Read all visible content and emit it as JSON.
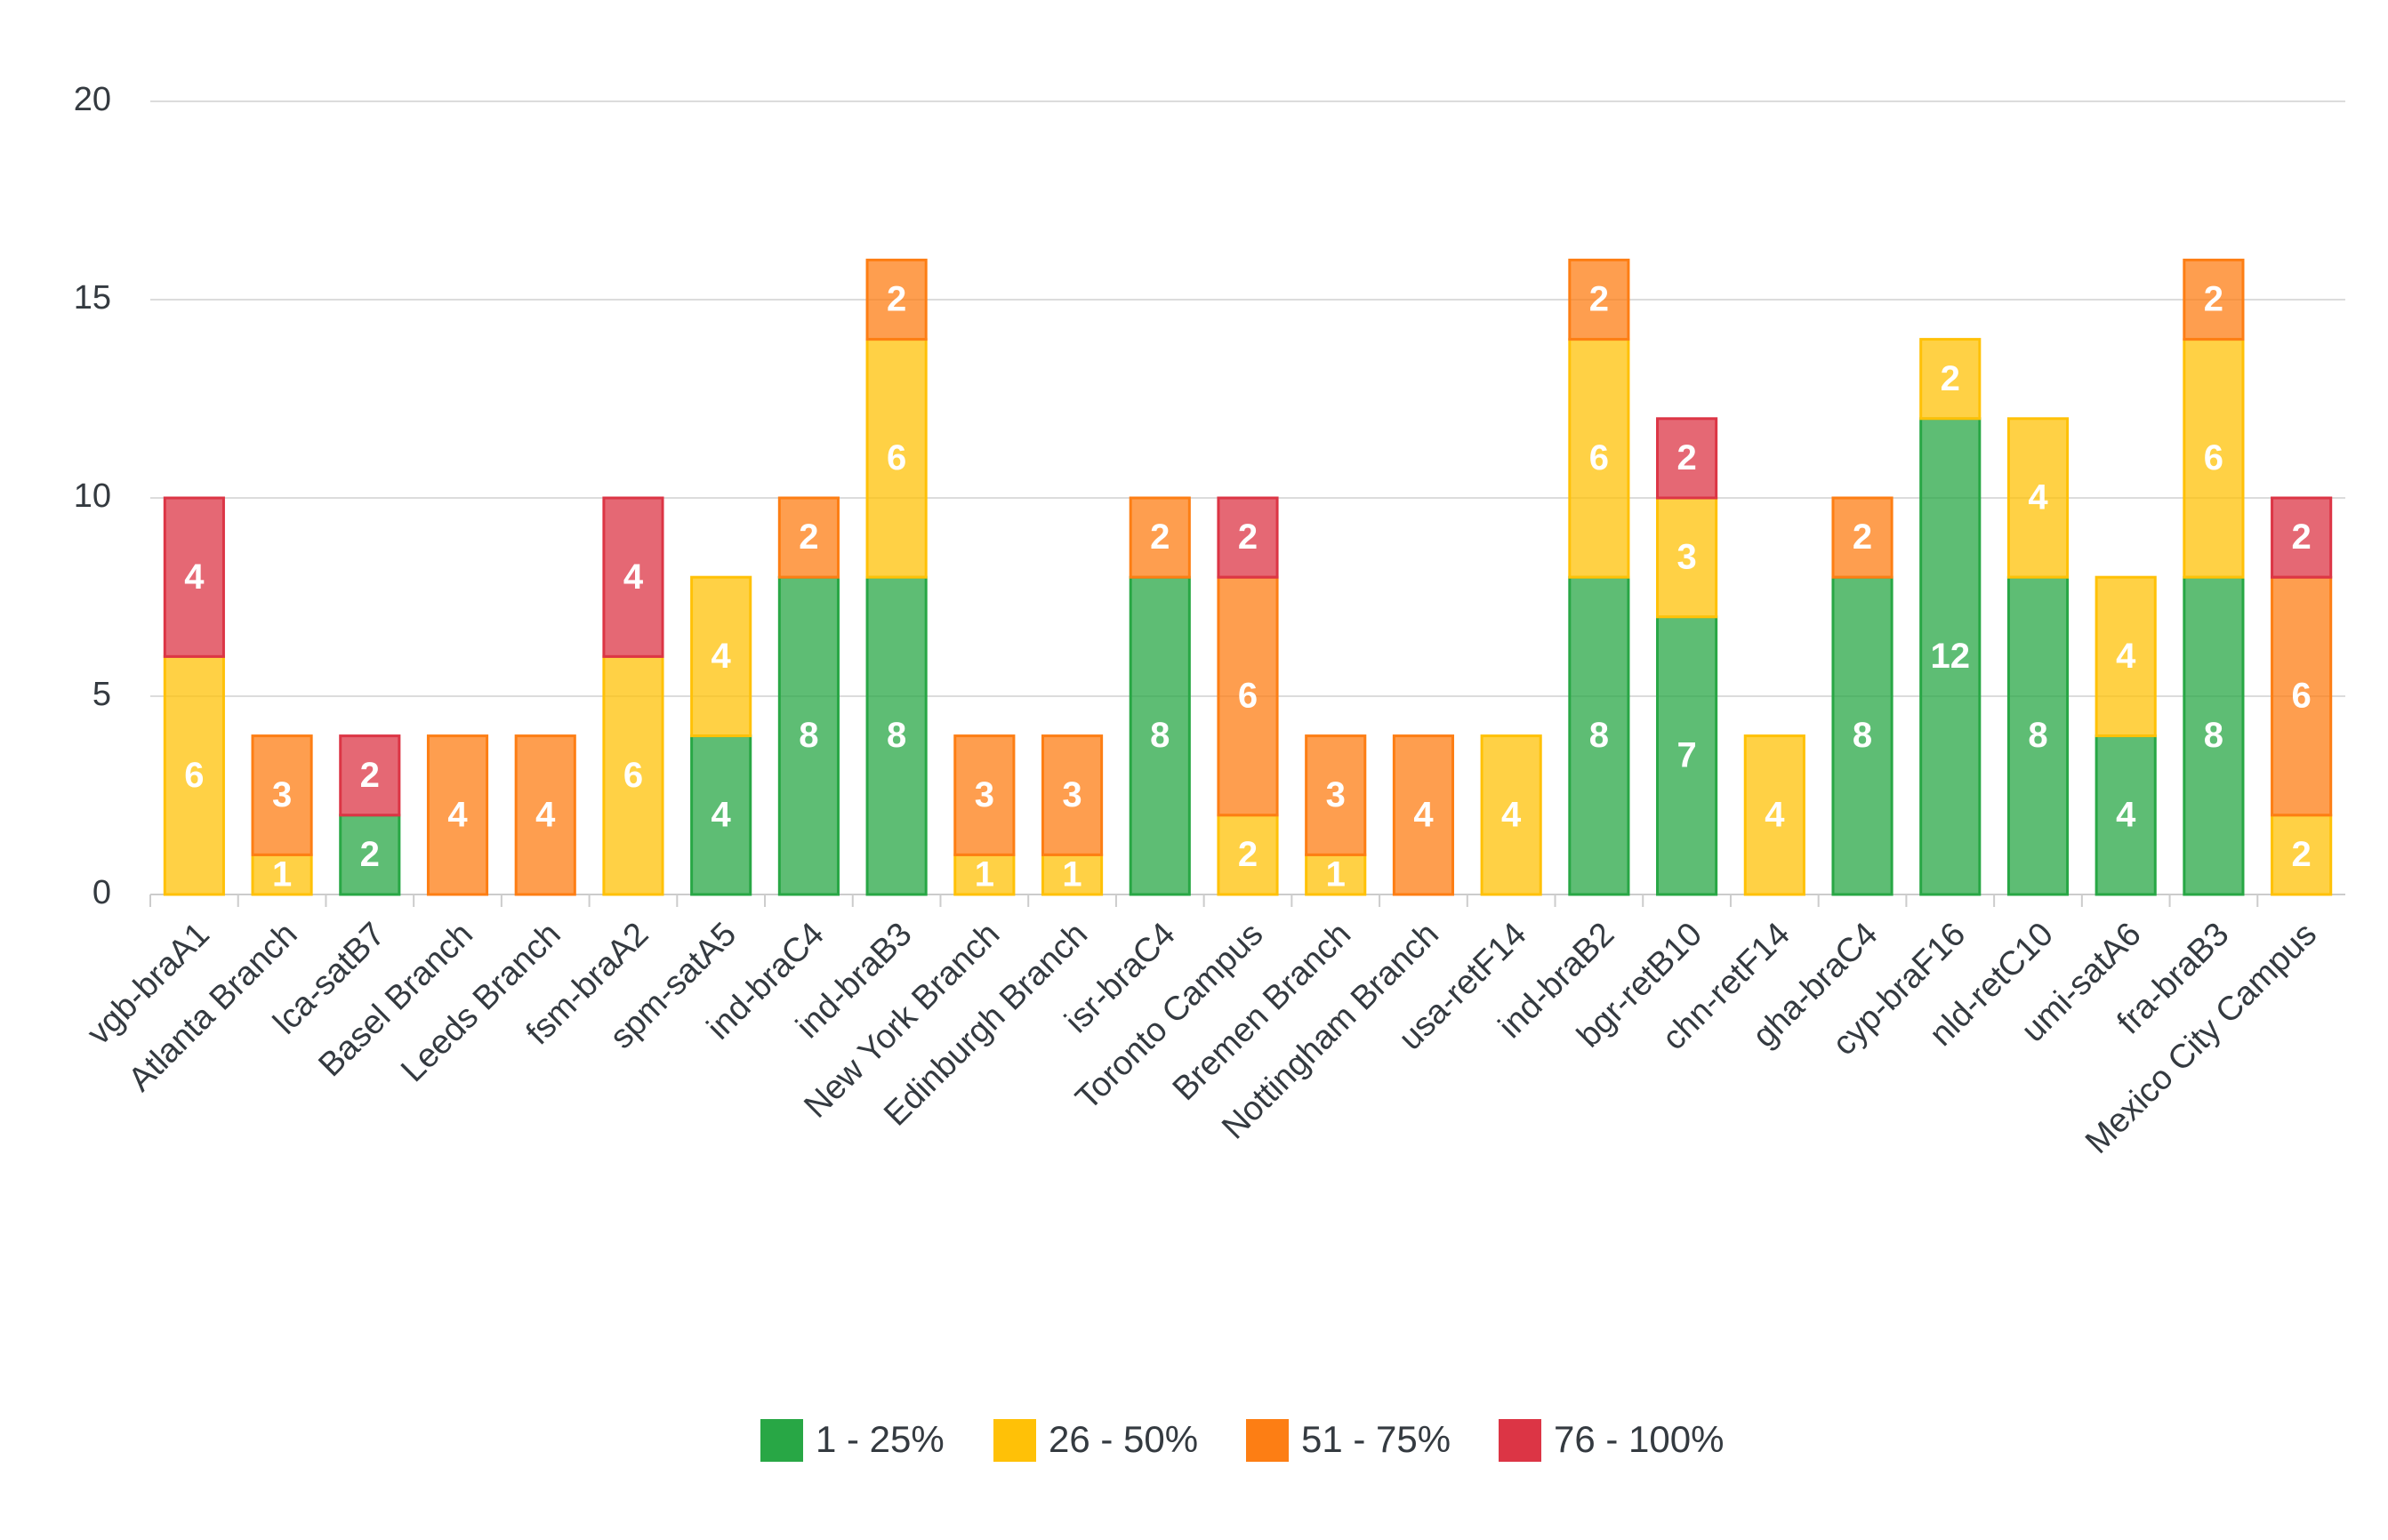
{
  "chart_data": {
    "type": "stacked-bar",
    "categories": [
      "vgb-braA1",
      "Atlanta Branch",
      "lca-satB7",
      "Basel Branch",
      "Leeds Branch",
      "fsm-braA2",
      "spm-satA5",
      "ind-braC4",
      "ind-braB3",
      "New York Branch",
      "Edinburgh Branch",
      "isr-braC4",
      "Toronto Campus",
      "Bremen Branch",
      "Nottingham Branch",
      "usa-retF14",
      "ind-braB2",
      "bgr-retB10",
      "chn-retF14",
      "gha-braC4",
      "cyp-braF16",
      "nld-retC10",
      "umi-satA6",
      "fra-braB3",
      "Mexico City Campus"
    ],
    "series": [
      {
        "name": "1 - 25%",
        "color": "#28a745",
        "values": [
          null,
          null,
          2,
          null,
          null,
          null,
          4,
          8,
          8,
          null,
          null,
          8,
          null,
          null,
          null,
          null,
          8,
          7,
          null,
          8,
          12,
          8,
          4,
          8,
          null
        ]
      },
      {
        "name": "26 - 50%",
        "color": "#ffc107",
        "values": [
          6,
          1,
          null,
          null,
          null,
          6,
          4,
          null,
          6,
          1,
          1,
          null,
          2,
          1,
          null,
          4,
          6,
          3,
          4,
          null,
          2,
          4,
          4,
          6,
          2
        ]
      },
      {
        "name": "51 - 75%",
        "color": "#fd7e14",
        "values": [
          null,
          3,
          null,
          4,
          4,
          null,
          null,
          2,
          2,
          3,
          3,
          2,
          6,
          3,
          4,
          null,
          2,
          null,
          null,
          2,
          null,
          null,
          null,
          2,
          6
        ]
      },
      {
        "name": "76 - 100%",
        "color": "#dc3545",
        "values": [
          4,
          null,
          2,
          null,
          null,
          4,
          null,
          null,
          null,
          null,
          null,
          null,
          2,
          null,
          null,
          null,
          null,
          2,
          null,
          null,
          null,
          null,
          null,
          null,
          2
        ]
      }
    ],
    "ylim": [
      0,
      20
    ],
    "yticks": [
      0,
      5,
      10,
      15,
      20
    ],
    "grid": true,
    "legend": "bottom"
  }
}
